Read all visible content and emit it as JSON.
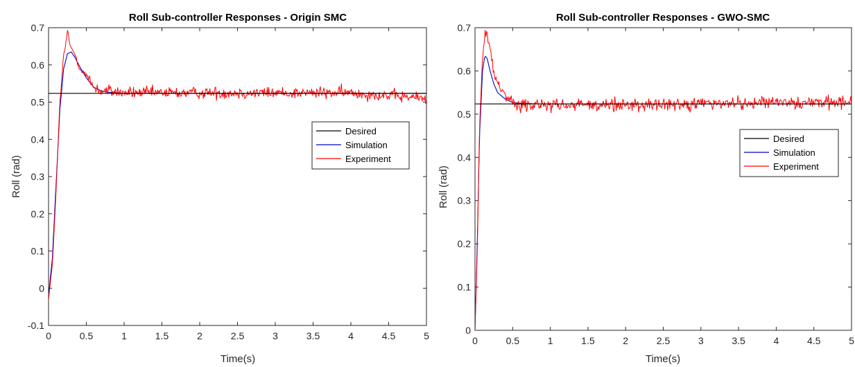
{
  "chart_data": [
    {
      "type": "line",
      "title": "Roll Sub-controller Responses - Origin SMC",
      "xlabel": "Time(s)",
      "ylabel": "Roll (rad)",
      "xlim": [
        0,
        5
      ],
      "ylim": [
        -0.1,
        0.7
      ],
      "xticks": [
        "0",
        "0.5",
        "1",
        "1.5",
        "2",
        "2.5",
        "3",
        "3.5",
        "4",
        "4.5",
        "5"
      ],
      "yticks": [
        "-0.1",
        "0",
        "0.1",
        "0.2",
        "0.3",
        "0.4",
        "0.5",
        "0.6",
        "0.7"
      ],
      "grid": false,
      "legend_position": "right",
      "series": [
        {
          "name": "Desired",
          "color": "#000000",
          "x": [
            0,
            5
          ],
          "y": [
            0.5236,
            0.5236
          ]
        },
        {
          "name": "Simulation",
          "color": "#0000cc",
          "x": [
            0,
            0.05,
            0.1,
            0.15,
            0.2,
            0.25,
            0.3,
            0.35,
            0.4,
            0.5,
            0.6,
            0.7,
            0.8,
            1.0,
            1.5,
            2.0,
            3.0,
            4.0,
            5.0
          ],
          "y": [
            -0.02,
            0.08,
            0.28,
            0.48,
            0.59,
            0.63,
            0.635,
            0.62,
            0.6,
            0.565,
            0.54,
            0.53,
            0.526,
            0.524,
            0.5236,
            0.5236,
            0.5236,
            0.5236,
            0.5236
          ]
        },
        {
          "name": "Experiment",
          "color": "#ff0000",
          "x": [
            0,
            0.05,
            0.1,
            0.15,
            0.2,
            0.25,
            0.3,
            0.35,
            0.4,
            0.5,
            0.6,
            0.7,
            0.8,
            1.0,
            1.5,
            2.0,
            3.0,
            4.0,
            5.0
          ],
          "y": [
            -0.03,
            0.06,
            0.26,
            0.5,
            0.62,
            0.69,
            0.64,
            0.63,
            0.6,
            0.57,
            0.54,
            0.53,
            0.53,
            0.525,
            0.525,
            0.525,
            0.525,
            0.525,
            0.51
          ]
        }
      ]
    },
    {
      "type": "line",
      "title": "Roll Sub-controller Responses - GWO-SMC",
      "xlabel": "Time(s)",
      "ylabel": "Roll (rad)",
      "xlim": [
        0,
        5
      ],
      "ylim": [
        0,
        0.7
      ],
      "xticks": [
        "0",
        "0.5",
        "1",
        "1.5",
        "2",
        "2.5",
        "3",
        "3.5",
        "4",
        "4.5",
        "5"
      ],
      "yticks": [
        "0",
        "0.1",
        "0.2",
        "0.3",
        "0.4",
        "0.5",
        "0.6",
        "0.7"
      ],
      "grid": false,
      "legend_position": "right",
      "series": [
        {
          "name": "Desired",
          "color": "#000000",
          "x": [
            0,
            5
          ],
          "y": [
            0.5236,
            0.5236
          ]
        },
        {
          "name": "Simulation",
          "color": "#0000cc",
          "x": [
            0,
            0.03,
            0.06,
            0.1,
            0.13,
            0.16,
            0.2,
            0.25,
            0.3,
            0.4,
            0.5,
            0.6,
            0.8,
            1.0,
            2.0,
            3.0,
            4.0,
            5.0
          ],
          "y": [
            0,
            0.2,
            0.45,
            0.6,
            0.635,
            0.63,
            0.6,
            0.57,
            0.55,
            0.535,
            0.527,
            0.525,
            0.524,
            0.5236,
            0.5236,
            0.5236,
            0.5236,
            0.5236
          ]
        },
        {
          "name": "Experiment",
          "color": "#ff0000",
          "x": [
            0,
            0.03,
            0.06,
            0.1,
            0.13,
            0.16,
            0.2,
            0.25,
            0.3,
            0.4,
            0.5,
            0.6,
            0.8,
            1.0,
            2.0,
            3.0,
            4.0,
            5.0
          ],
          "y": [
            0,
            0.18,
            0.47,
            0.63,
            0.68,
            0.685,
            0.65,
            0.6,
            0.57,
            0.55,
            0.53,
            0.52,
            0.52,
            0.52,
            0.52,
            0.525,
            0.525,
            0.53
          ]
        }
      ]
    }
  ]
}
